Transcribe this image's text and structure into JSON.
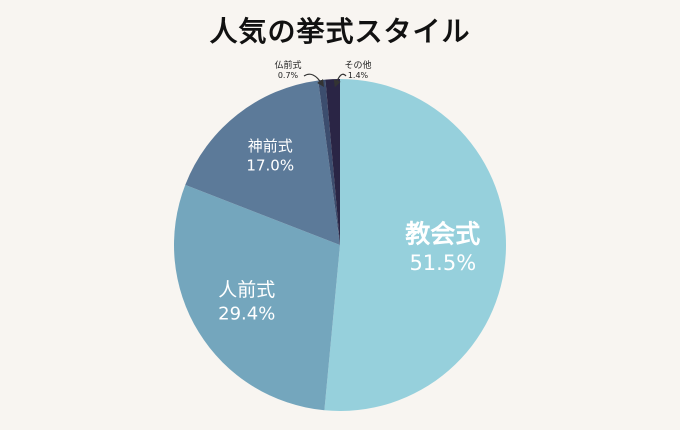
{
  "chart_data": {
    "type": "pie",
    "title": "人気の挙式スタイル",
    "slices": [
      {
        "label": "教会式",
        "value": 51.5,
        "display": "51.5%",
        "color": "#96d0dc"
      },
      {
        "label": "人前式",
        "value": 29.4,
        "display": "29.4%",
        "color": "#74a6bd"
      },
      {
        "label": "神前式",
        "value": 17.0,
        "display": "17.0%",
        "color": "#5c7a99"
      },
      {
        "label": "仏前式",
        "value": 0.7,
        "display": "0.7%",
        "color": "#3c4d6e"
      },
      {
        "label": "その他",
        "value": 1.4,
        "display": "1.4%",
        "color": "#2a2545"
      }
    ]
  }
}
